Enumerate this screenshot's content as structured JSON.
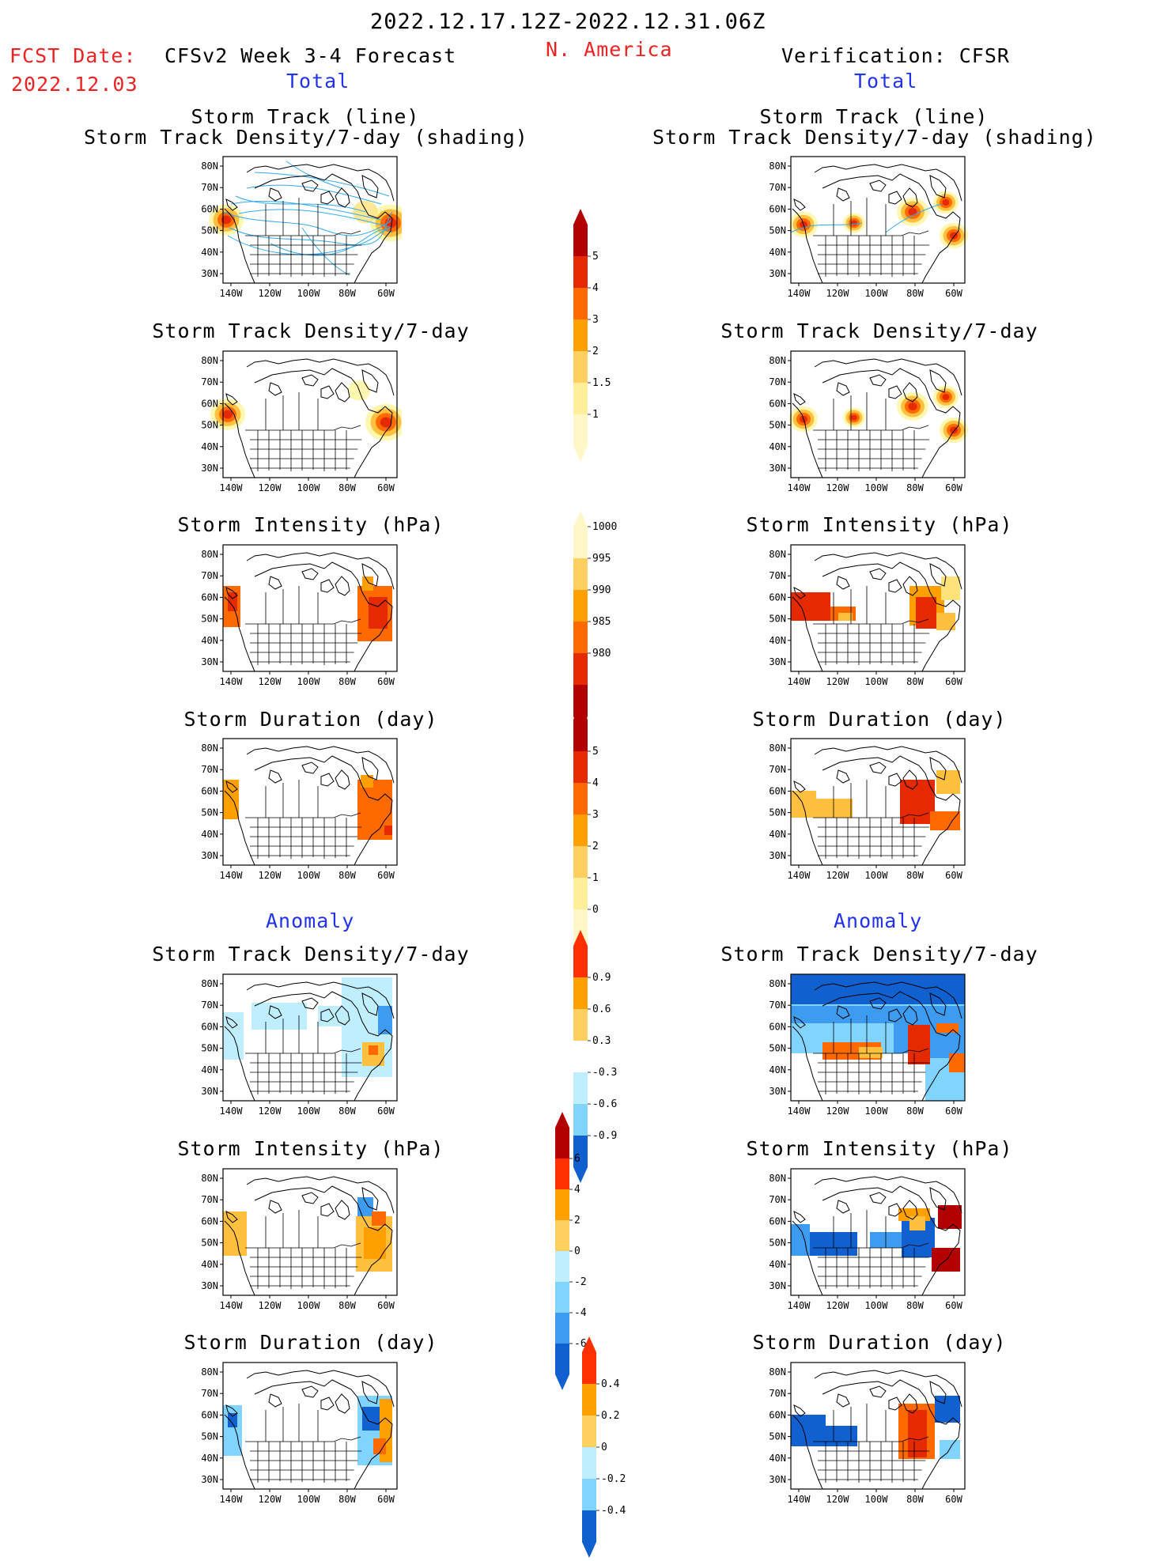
{
  "header": {
    "period": "2022.12.17.12Z-2022.12.31.06Z",
    "region": "N. America",
    "fcst_label": "FCST Date:",
    "fcst_date": "2022.12.03",
    "left_title": "CFSv2 Week 3-4 Forecast",
    "right_title": "Verification: CFSR",
    "total_label": "Total",
    "anomaly_label": "Anomaly"
  },
  "panels": {
    "storm_track_line": "Storm Track (line)",
    "storm_track_shading": "Storm Track Density/7-day (shading)",
    "density": "Storm Track Density/7-day",
    "intensity": "Storm Intensity (hPa)",
    "duration": "Storm Duration (day)"
  },
  "axes": {
    "lat_labels": [
      "80N",
      "70N",
      "60N",
      "50N",
      "40N",
      "30N"
    ],
    "lon_labels": [
      "140W",
      "120W",
      "100W",
      "80W",
      "60W"
    ]
  },
  "colorbars": {
    "density_total": [
      "5",
      "4",
      "3",
      "2",
      "1.5",
      "1"
    ],
    "intensity_total": [
      "1000",
      "995",
      "990",
      "985",
      "980"
    ],
    "duration_total": [
      "5",
      "4",
      "3",
      "2",
      "1",
      "0"
    ],
    "density_anom": [
      "0.9",
      "0.6",
      "0.3",
      "-0.3",
      "-0.6",
      "-0.9"
    ],
    "intensity_anom": [
      "6",
      "4",
      "2",
      "0",
      "-2",
      "-4",
      "-6"
    ],
    "duration_anom": [
      "0.4",
      "0.2",
      "0",
      "-0.2",
      "-0.4"
    ]
  },
  "colors": {
    "header_red": "#ee2222",
    "header_blue": "#2233ee",
    "track_line": "#33aaee",
    "warm": [
      "#fff7b0",
      "#ffe27a",
      "#ffc040",
      "#ffa000",
      "#ff6a00",
      "#e52a00",
      "#b30000"
    ],
    "cool": [
      "#bfefff",
      "#80d4ff",
      "#3d9cf0",
      "#1060d0"
    ]
  }
}
